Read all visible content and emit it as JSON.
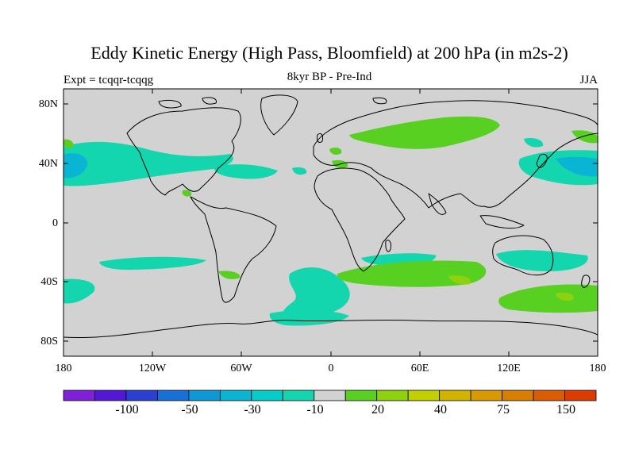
{
  "title": "Eddy Kinetic Energy (High Pass, Bloomfield) at 200 hPa (in m2s-2)",
  "subtitle_left": "Expt = tcqqr-tcqqg",
  "subtitle_center": "8kyr BP - Pre-Ind",
  "subtitle_right": "JJA",
  "lat_labels": [
    "80N",
    "40N",
    "0",
    "40S",
    "80S"
  ],
  "lon_labels": [
    "180",
    "120W",
    "60W",
    "0",
    "60E",
    "120E",
    "180"
  ],
  "colorbar": {
    "colors": [
      "#7f1fd8",
      "#5317d6",
      "#2b3fd3",
      "#1670d8",
      "#0d98d8",
      "#0ab5d4",
      "#05cdc9",
      "#14d6ae",
      "#d2d2d2",
      "#58d021",
      "#8ed10d",
      "#c2d000",
      "#d2b400",
      "#d89a00",
      "#d97e00",
      "#dc5d00",
      "#dc3c00"
    ],
    "labels": [
      "-100",
      "-50",
      "-30",
      "-10",
      "20",
      "40",
      "75",
      "150"
    ]
  },
  "field_colors": {
    "background": "#d2d2d2",
    "neg_light": "#14d6ae",
    "neg_mid": "#0ab5d4",
    "pos_light": "#58d021",
    "pos_mid": "#8ed10d",
    "pos_high": "#c2d000"
  }
}
